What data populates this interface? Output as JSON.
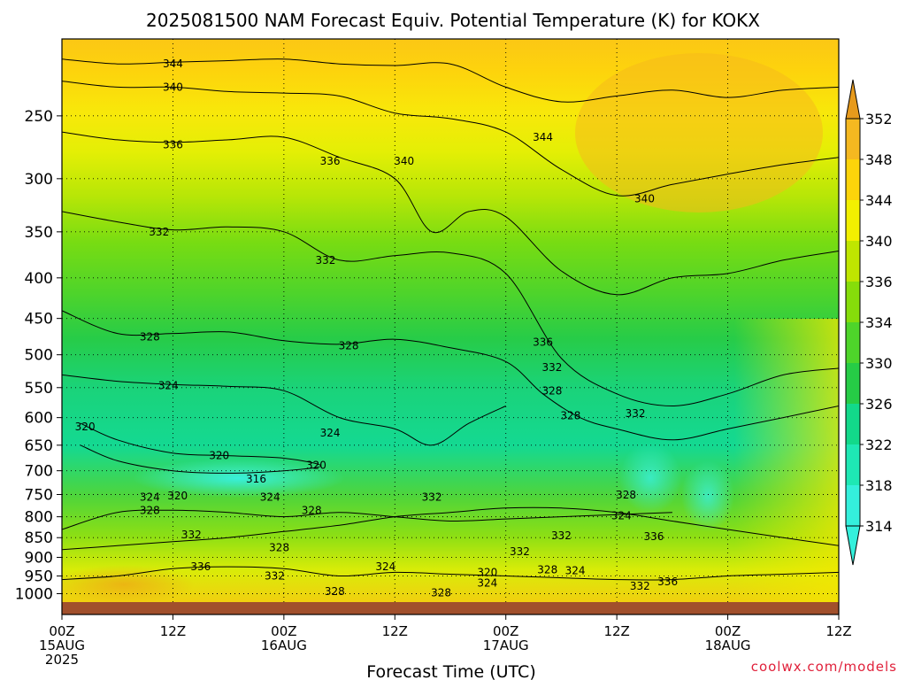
{
  "chart_data": {
    "type": "heatmap",
    "title": "2025081500 NAM Forecast Equiv. Potential Temperature (K) for KOKX",
    "xlabel": "Forecast Time (UTC)",
    "ylabel": "",
    "x_ticks": [
      {
        "hour": 0,
        "line1": "00Z",
        "line2": "15AUG",
        "line3": "2025"
      },
      {
        "hour": 12,
        "line1": "12Z",
        "line2": "",
        "line3": ""
      },
      {
        "hour": 24,
        "line1": "00Z",
        "line2": "16AUG",
        "line3": ""
      },
      {
        "hour": 36,
        "line1": "12Z",
        "line2": "",
        "line3": ""
      },
      {
        "hour": 48,
        "line1": "00Z",
        "line2": "17AUG",
        "line3": ""
      },
      {
        "hour": 60,
        "line1": "12Z",
        "line2": "",
        "line3": ""
      },
      {
        "hour": 72,
        "line1": "00Z",
        "line2": "18AUG",
        "line3": ""
      },
      {
        "hour": 84,
        "line1": "12Z",
        "line2": "",
        "line3": ""
      }
    ],
    "xlim": [
      0,
      84
    ],
    "y_ticks": [
      250,
      300,
      350,
      400,
      450,
      500,
      550,
      600,
      650,
      700,
      750,
      800,
      850,
      900,
      950,
      1000
    ],
    "ylim_hpa": [
      200,
      1030
    ],
    "y_scale": "log (pressure)",
    "grid": true,
    "colorbar": {
      "labels": [
        "352",
        "348",
        "344",
        "340",
        "336",
        "334",
        "330",
        "326",
        "322",
        "318",
        "314"
      ],
      "colors": [
        "#e79a1c",
        "#f5b820",
        "#fcd40a",
        "#f2f000",
        "#bfe600",
        "#86dd0a",
        "#4ed52a",
        "#26cc46",
        "#12d98a",
        "#1ee8b4",
        "#34f0dc"
      ]
    },
    "contour_labels": [
      {
        "text": "344",
        "hour": 12.0,
        "hpa": 215
      },
      {
        "text": "340",
        "hour": 12.0,
        "hpa": 230
      },
      {
        "text": "336",
        "hour": 12.0,
        "hpa": 272
      },
      {
        "text": "336",
        "hour": 29.0,
        "hpa": 285
      },
      {
        "text": "340",
        "hour": 37.0,
        "hpa": 285
      },
      {
        "text": "344",
        "hour": 52.0,
        "hpa": 266
      },
      {
        "text": "340",
        "hour": 63.0,
        "hpa": 318
      },
      {
        "text": "332",
        "hour": 10.5,
        "hpa": 350
      },
      {
        "text": "332",
        "hour": 28.5,
        "hpa": 380
      },
      {
        "text": "328",
        "hour": 9.5,
        "hpa": 475
      },
      {
        "text": "328",
        "hour": 31.0,
        "hpa": 487
      },
      {
        "text": "336",
        "hour": 52.0,
        "hpa": 482
      },
      {
        "text": "332",
        "hour": 53.0,
        "hpa": 519
      },
      {
        "text": "324",
        "hour": 11.5,
        "hpa": 547
      },
      {
        "text": "328",
        "hour": 53.0,
        "hpa": 555
      },
      {
        "text": "328",
        "hour": 55.0,
        "hpa": 597
      },
      {
        "text": "332",
        "hour": 62.0,
        "hpa": 593
      },
      {
        "text": "320",
        "hour": 2.5,
        "hpa": 616
      },
      {
        "text": "324",
        "hour": 29.0,
        "hpa": 627
      },
      {
        "text": "320",
        "hour": 17.0,
        "hpa": 670
      },
      {
        "text": "320",
        "hour": 27.5,
        "hpa": 689
      },
      {
        "text": "316",
        "hour": 21.0,
        "hpa": 717
      },
      {
        "text": "320",
        "hour": 12.5,
        "hpa": 753
      },
      {
        "text": "324",
        "hour": 9.5,
        "hpa": 756
      },
      {
        "text": "324",
        "hour": 22.5,
        "hpa": 756
      },
      {
        "text": "332",
        "hour": 40.0,
        "hpa": 756
      },
      {
        "text": "328",
        "hour": 9.5,
        "hpa": 785
      },
      {
        "text": "328",
        "hour": 27.0,
        "hpa": 785
      },
      {
        "text": "328",
        "hour": 61.0,
        "hpa": 751
      },
      {
        "text": "324",
        "hour": 60.5,
        "hpa": 798
      },
      {
        "text": "332",
        "hour": 14.0,
        "hpa": 843
      },
      {
        "text": "332",
        "hour": 54.0,
        "hpa": 845
      },
      {
        "text": "336",
        "hour": 64.0,
        "hpa": 847
      },
      {
        "text": "328",
        "hour": 23.5,
        "hpa": 875
      },
      {
        "text": "332",
        "hour": 49.5,
        "hpa": 885
      },
      {
        "text": "336",
        "hour": 15.0,
        "hpa": 925
      },
      {
        "text": "324",
        "hour": 35.0,
        "hpa": 925
      },
      {
        "text": "320",
        "hour": 46.0,
        "hpa": 940
      },
      {
        "text": "328",
        "hour": 52.5,
        "hpa": 933
      },
      {
        "text": "324",
        "hour": 55.5,
        "hpa": 935
      },
      {
        "text": "332",
        "hour": 23.0,
        "hpa": 950
      },
      {
        "text": "324",
        "hour": 46.0,
        "hpa": 970
      },
      {
        "text": "336",
        "hour": 65.5,
        "hpa": 966
      },
      {
        "text": "332",
        "hour": 62.5,
        "hpa": 978
      },
      {
        "text": "328",
        "hour": 29.5,
        "hpa": 993
      },
      {
        "text": "328",
        "hour": 41.0,
        "hpa": 997
      }
    ],
    "isentropes": [
      {
        "value": 344,
        "points": [
          [
            0,
            212
          ],
          [
            6,
            215
          ],
          [
            12,
            214
          ],
          [
            18,
            213
          ],
          [
            24,
            212
          ],
          [
            30,
            215
          ],
          [
            36,
            216
          ],
          [
            42,
            215
          ],
          [
            48,
            230
          ],
          [
            54,
            240
          ],
          [
            60,
            236
          ],
          [
            66,
            232
          ],
          [
            72,
            237
          ],
          [
            78,
            232
          ],
          [
            84,
            230
          ]
        ]
      },
      {
        "value": 340,
        "points": [
          [
            0,
            226
          ],
          [
            6,
            230
          ],
          [
            12,
            230
          ],
          [
            18,
            233
          ],
          [
            24,
            234
          ],
          [
            30,
            236
          ],
          [
            36,
            248
          ],
          [
            42,
            252
          ],
          [
            48,
            262
          ],
          [
            54,
            292
          ],
          [
            60,
            315
          ],
          [
            66,
            305
          ],
          [
            72,
            296
          ],
          [
            78,
            288
          ],
          [
            84,
            282
          ]
        ]
      },
      {
        "value": 336,
        "points": [
          [
            0,
            262
          ],
          [
            6,
            268
          ],
          [
            12,
            270
          ],
          [
            18,
            268
          ],
          [
            24,
            266
          ],
          [
            30,
            282
          ],
          [
            36,
            300
          ],
          [
            40,
            350
          ],
          [
            44,
            330
          ],
          [
            48,
            335
          ],
          [
            54,
            392
          ],
          [
            60,
            420
          ],
          [
            66,
            400
          ],
          [
            72,
            395
          ],
          [
            78,
            380
          ],
          [
            84,
            370
          ]
        ]
      },
      {
        "value": 332,
        "points": [
          [
            0,
            330
          ],
          [
            6,
            340
          ],
          [
            12,
            348
          ],
          [
            18,
            345
          ],
          [
            24,
            350
          ],
          [
            30,
            380
          ],
          [
            36,
            375
          ],
          [
            42,
            372
          ],
          [
            48,
            395
          ],
          [
            54,
            505
          ],
          [
            60,
            560
          ],
          [
            66,
            580
          ],
          [
            72,
            560
          ],
          [
            78,
            530
          ],
          [
            84,
            520
          ]
        ]
      },
      {
        "value": 328,
        "points": [
          [
            0,
            440
          ],
          [
            6,
            470
          ],
          [
            12,
            470
          ],
          [
            18,
            468
          ],
          [
            24,
            480
          ],
          [
            30,
            485
          ],
          [
            36,
            478
          ],
          [
            42,
            490
          ],
          [
            48,
            510
          ],
          [
            52,
            560
          ],
          [
            56,
            600
          ],
          [
            60,
            620
          ],
          [
            66,
            640
          ],
          [
            72,
            620
          ],
          [
            78,
            600
          ],
          [
            84,
            580
          ]
        ]
      },
      {
        "value": 324,
        "points": [
          [
            0,
            530
          ],
          [
            6,
            540
          ],
          [
            12,
            545
          ],
          [
            18,
            548
          ],
          [
            24,
            555
          ],
          [
            30,
            600
          ],
          [
            36,
            620
          ],
          [
            40,
            650
          ],
          [
            44,
            610
          ],
          [
            48,
            580
          ]
        ]
      },
      {
        "value": 320,
        "points": [
          [
            2,
            610
          ],
          [
            6,
            640
          ],
          [
            12,
            665
          ],
          [
            18,
            670
          ],
          [
            24,
            675
          ],
          [
            28,
            690
          ],
          [
            24,
            700
          ],
          [
            18,
            705
          ],
          [
            12,
            700
          ],
          [
            6,
            680
          ],
          [
            2,
            650
          ]
        ]
      },
      {
        "value": 332,
        "points": [
          [
            0,
            880
          ],
          [
            6,
            870
          ],
          [
            12,
            860
          ],
          [
            18,
            850
          ],
          [
            24,
            835
          ],
          [
            30,
            820
          ],
          [
            36,
            800
          ],
          [
            42,
            790
          ],
          [
            48,
            780
          ],
          [
            54,
            780
          ],
          [
            60,
            790
          ],
          [
            66,
            810
          ],
          [
            72,
            830
          ],
          [
            78,
            850
          ],
          [
            84,
            870
          ]
        ]
      },
      {
        "value": 328,
        "points": [
          [
            0,
            830
          ],
          [
            6,
            790
          ],
          [
            12,
            785
          ],
          [
            18,
            790
          ],
          [
            24,
            800
          ],
          [
            30,
            790
          ],
          [
            36,
            800
          ],
          [
            42,
            810
          ],
          [
            48,
            805
          ],
          [
            54,
            800
          ],
          [
            60,
            795
          ],
          [
            66,
            790
          ]
        ]
      },
      {
        "value": 336,
        "points": [
          [
            0,
            960
          ],
          [
            6,
            950
          ],
          [
            12,
            930
          ],
          [
            18,
            925
          ],
          [
            24,
            930
          ],
          [
            30,
            950
          ],
          [
            36,
            940
          ],
          [
            42,
            945
          ],
          [
            48,
            950
          ],
          [
            54,
            955
          ],
          [
            60,
            960
          ],
          [
            66,
            960
          ],
          [
            72,
            950
          ],
          [
            78,
            945
          ],
          [
            84,
            940
          ]
        ]
      }
    ]
  },
  "credit": "coolwx.com/models"
}
